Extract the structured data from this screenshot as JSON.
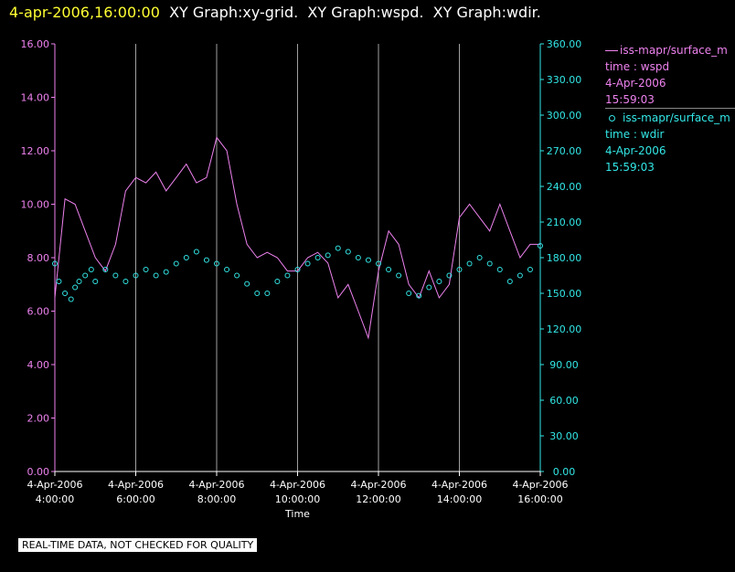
{
  "header": {
    "timestamp": "4-apr-2006,16:00:00",
    "graphs": [
      "XY Graph:xy-grid.",
      "XY Graph:wspd.",
      "XY Graph:wdir."
    ]
  },
  "notice": "REAL-TIME DATA, NOT CHECKED FOR QUALITY",
  "colors": {
    "wspd": "#ee82ee",
    "wdir": "#33e6e6",
    "grid": "#a0a0a0",
    "text": "#ffffff",
    "timestamp": "#ffff33"
  },
  "legend": [
    {
      "symbol": "line",
      "label": "iss-mapr/surface_m",
      "variable": "time : wspd",
      "date": "4-Apr-2006",
      "time": "15:59:03",
      "color": "#ee82ee"
    },
    {
      "symbol": "circle",
      "label": "iss-mapr/surface_m",
      "variable": "time : wdir",
      "date": "4-Apr-2006",
      "time": "15:59:03",
      "color": "#33e6e6"
    }
  ],
  "chart_data": {
    "type": "line",
    "xlabel": "Time",
    "x_ticks": [
      {
        "date": "4-Apr-2006",
        "time": "4:00:00"
      },
      {
        "date": "4-Apr-2006",
        "time": "6:00:00"
      },
      {
        "date": "4-Apr-2006",
        "time": "8:00:00"
      },
      {
        "date": "4-Apr-2006",
        "time": "10:00:00"
      },
      {
        "date": "4-Apr-2006",
        "time": "12:00:00"
      },
      {
        "date": "4-Apr-2006",
        "time": "14:00:00"
      },
      {
        "date": "4-Apr-2006",
        "time": "16:00:00"
      }
    ],
    "x_tick_hours": [
      4,
      6,
      8,
      10,
      12,
      14,
      16
    ],
    "xlim_hours": [
      4,
      16
    ],
    "y_left": {
      "ylim": [
        0,
        16
      ],
      "ticks": [
        "0.00",
        "2.00",
        "4.00",
        "6.00",
        "8.00",
        "10.00",
        "12.00",
        "14.00",
        "16.00"
      ]
    },
    "y_right": {
      "ylim": [
        0,
        360
      ],
      "ticks": [
        "0.00",
        "30.00",
        "60.00",
        "90.00",
        "120.00",
        "150.00",
        "180.00",
        "210.00",
        "240.00",
        "270.00",
        "300.00",
        "330.00",
        "360.00"
      ]
    },
    "grid": "vertical",
    "series": [
      {
        "key": "wspd",
        "axis": "left",
        "style": "line",
        "x_hours": [
          4.0,
          4.25,
          4.5,
          4.75,
          5.0,
          5.25,
          5.5,
          5.75,
          6.0,
          6.25,
          6.5,
          6.75,
          7.0,
          7.25,
          7.5,
          7.75,
          8.0,
          8.25,
          8.5,
          8.75,
          9.0,
          9.25,
          9.5,
          9.75,
          10.0,
          10.25,
          10.5,
          10.75,
          11.0,
          11.25,
          11.5,
          11.75,
          12.0,
          12.25,
          12.5,
          12.75,
          13.0,
          13.25,
          13.5,
          13.75,
          14.0,
          14.25,
          14.5,
          14.75,
          15.0,
          15.25,
          15.5,
          15.75,
          16.0
        ],
        "values": [
          6.5,
          10.2,
          10.0,
          9.0,
          8.0,
          7.5,
          8.5,
          10.5,
          11.0,
          10.8,
          11.2,
          10.5,
          11.0,
          11.5,
          10.8,
          11.0,
          12.5,
          12.0,
          10.0,
          8.5,
          8.0,
          8.2,
          8.0,
          7.5,
          7.5,
          8.0,
          8.2,
          7.8,
          6.5,
          7.0,
          6.0,
          5.0,
          7.5,
          9.0,
          8.5,
          7.0,
          6.5,
          7.5,
          6.5,
          7.0,
          9.5,
          10.0,
          9.5,
          9.0,
          10.0,
          9.0,
          8.0,
          8.5,
          8.5
        ]
      },
      {
        "key": "wdir",
        "axis": "right",
        "style": "circle",
        "x_hours": [
          4.0,
          4.1,
          4.25,
          4.4,
          4.5,
          4.6,
          4.75,
          4.9,
          5.0,
          5.25,
          5.5,
          5.75,
          6.0,
          6.25,
          6.5,
          6.75,
          7.0,
          7.25,
          7.5,
          7.75,
          8.0,
          8.25,
          8.5,
          8.75,
          9.0,
          9.25,
          9.5,
          9.75,
          10.0,
          10.25,
          10.5,
          10.75,
          11.0,
          11.25,
          11.5,
          11.75,
          12.0,
          12.25,
          12.5,
          12.75,
          13.0,
          13.25,
          13.5,
          13.75,
          14.0,
          14.25,
          14.5,
          14.75,
          15.0,
          15.25,
          15.5,
          15.75,
          16.0
        ],
        "values": [
          175,
          160,
          150,
          145,
          155,
          160,
          165,
          170,
          160,
          170,
          165,
          160,
          165,
          170,
          165,
          168,
          175,
          180,
          185,
          178,
          175,
          170,
          165,
          158,
          150,
          150,
          160,
          165,
          170,
          175,
          180,
          182,
          188,
          185,
          180,
          178,
          175,
          170,
          165,
          150,
          148,
          155,
          160,
          165,
          170,
          175,
          180,
          175,
          170,
          160,
          165,
          170,
          190
        ]
      }
    ]
  }
}
